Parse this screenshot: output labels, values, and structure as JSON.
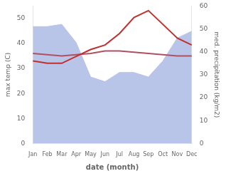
{
  "chart_data": {
    "type": "line",
    "xlabel": "date (month)",
    "ylabel": "max temp (C)",
    "y2label": "med. precipitation (kg/m2)",
    "categories": [
      "Jan",
      "Feb",
      "Mar",
      "Apr",
      "May",
      "Jun",
      "Jul",
      "Aug",
      "Sep",
      "Oct",
      "Nov",
      "Dec"
    ],
    "series": [
      {
        "type": "area",
        "color": "#b8c4e8",
        "axis": "y2",
        "values": [
          51,
          51,
          52,
          44,
          29,
          27,
          31,
          31,
          29,
          36,
          46,
          49
        ]
      },
      {
        "type": "line",
        "color": "#c0302d",
        "axis": "y2",
        "values": [
          36,
          35,
          35,
          38,
          41,
          43,
          48,
          55,
          58,
          52,
          46,
          43
        ]
      },
      {
        "type": "line",
        "color": "#b05060",
        "values": [
          36,
          35.5,
          35,
          35.5,
          36,
          37,
          37,
          36.5,
          36,
          35.5,
          35,
          35
        ]
      }
    ],
    "ylim": [
      0,
      55
    ],
    "yticks": [
      0,
      10,
      20,
      30,
      40,
      50
    ],
    "y2lim": [
      0,
      60
    ],
    "y2ticks": [
      0,
      10,
      20,
      30,
      40,
      50,
      60
    ],
    "grid": false
  }
}
